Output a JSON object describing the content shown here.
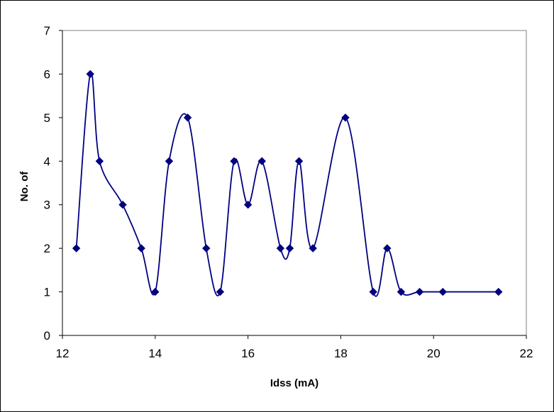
{
  "chart_data": {
    "type": "scatter",
    "title": "",
    "xlabel": "Idss   (mA)",
    "ylabel": "No. of",
    "xlim": [
      12,
      22
    ],
    "ylim": [
      0,
      7
    ],
    "x_ticks": [
      12,
      14,
      16,
      18,
      20,
      22
    ],
    "y_ticks": [
      0,
      1,
      2,
      3,
      4,
      5,
      6,
      7
    ],
    "grid": false,
    "legend": "none",
    "line_style": "smoothed",
    "marker": "diamond",
    "color": "#000080",
    "series": [
      {
        "x": [
          12.3,
          12.6,
          12.8,
          13.3,
          13.7,
          14.0,
          14.3,
          14.7,
          15.1,
          15.4,
          15.7,
          16.0,
          16.3,
          16.7,
          16.9,
          17.1,
          17.4,
          18.1,
          18.7,
          19.0,
          19.3,
          19.7,
          20.2,
          21.4
        ],
        "y": [
          2,
          6,
          4,
          3,
          2,
          1,
          4,
          5,
          2,
          1,
          4,
          3,
          4,
          2,
          2,
          4,
          2,
          5,
          1,
          2,
          1,
          1,
          1,
          1
        ]
      }
    ]
  }
}
